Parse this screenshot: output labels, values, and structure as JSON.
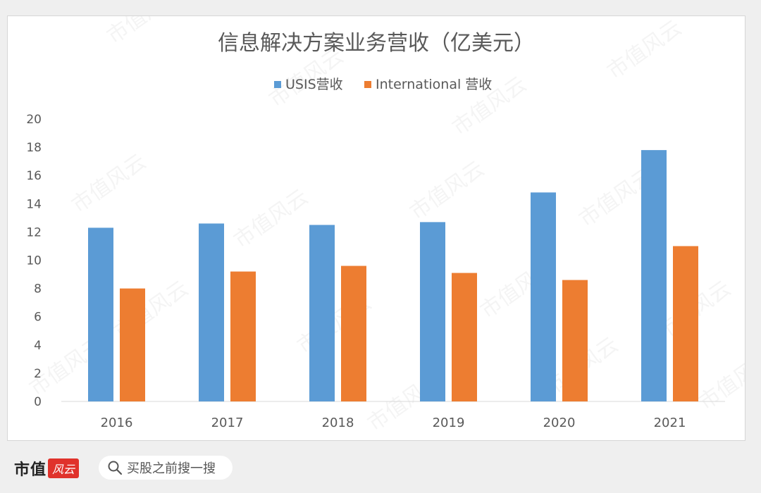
{
  "chart_data": {
    "type": "bar",
    "title": "信息解决方案业务营收（亿美元）",
    "categories": [
      "2016",
      "2017",
      "2018",
      "2019",
      "2020",
      "2021"
    ],
    "series": [
      {
        "name": "USIS营收",
        "color": "#5b9bd5",
        "values": [
          12.3,
          12.6,
          12.5,
          12.7,
          14.8,
          17.8
        ]
      },
      {
        "name": "International 营收",
        "color": "#ed7d31",
        "values": [
          8.0,
          9.2,
          9.6,
          9.1,
          8.6,
          11.0
        ]
      }
    ],
    "ylim": [
      0,
      20
    ],
    "yticks": [
      0,
      2,
      4,
      6,
      8,
      10,
      12,
      14,
      16,
      18,
      20
    ],
    "xlabel": "",
    "ylabel": "",
    "grid": false,
    "legend": "top-center"
  },
  "watermark": "市值风云",
  "footer": {
    "brand": "市值",
    "brand_seal": "风云",
    "search_text": "买股之前搜一搜"
  }
}
